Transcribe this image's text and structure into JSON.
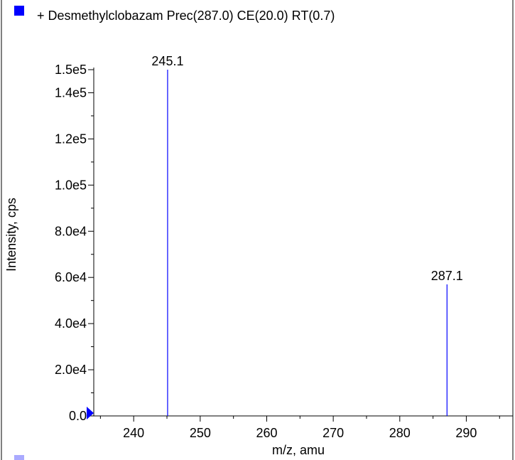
{
  "colors": {
    "series": "#0000ff",
    "legend_marker": "#0000ff",
    "axis": "#000000",
    "frame": "#000000",
    "background": "#ffffff"
  },
  "legend": {
    "icon": "blue-square-icon",
    "text": "+ Desmethylclobazam Prec(287.0) CE(20.0) RT(0.7)"
  },
  "chart_data": {
    "type": "bar",
    "title": "+ Desmethylclobazam Prec(287.0) CE(20.0) RT(0.7)",
    "xlabel": "m/z, amu",
    "ylabel": "Intensity, cps",
    "xlim": [
      234,
      297
    ],
    "ylim": [
      0,
      150000
    ],
    "x_ticks": [
      240,
      250,
      260,
      270,
      280,
      290
    ],
    "y_ticks": [
      {
        "value": 0,
        "label": "0.0"
      },
      {
        "value": 20000,
        "label": "2.0e4"
      },
      {
        "value": 40000,
        "label": "4.0e4"
      },
      {
        "value": 60000,
        "label": "6.0e4"
      },
      {
        "value": 80000,
        "label": "8.0e4"
      },
      {
        "value": 100000,
        "label": "1.0e5"
      },
      {
        "value": 120000,
        "label": "1.2e5"
      },
      {
        "value": 140000,
        "label": "1.4e5"
      },
      {
        "value": 150000,
        "label": "1.5e5"
      }
    ],
    "series": [
      {
        "peaks": [
          {
            "x": 245.1,
            "y": 150000,
            "label": "245.1"
          },
          {
            "x": 287.1,
            "y": 57000,
            "label": "287.1"
          }
        ]
      }
    ],
    "grid": false,
    "legend_position": "top-left"
  }
}
